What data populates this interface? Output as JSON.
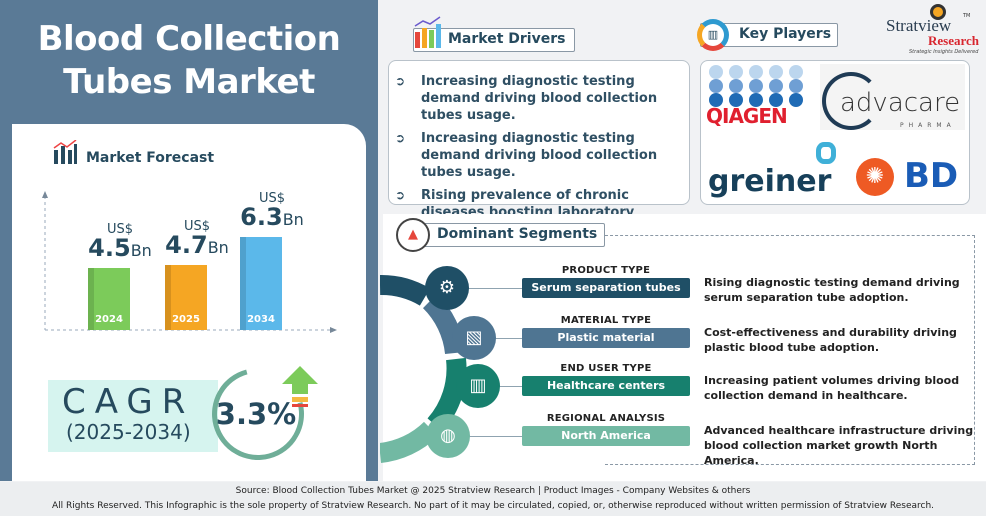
{
  "title": "Blood Collection Tubes Market",
  "forecast": {
    "header": "Market Forecast",
    "currency": "US$",
    "unit": "Bn",
    "bars": [
      {
        "year": "2024",
        "value": "4.5",
        "color": "#7ccb5a"
      },
      {
        "year": "2025",
        "value": "4.7",
        "color": "#f5a623"
      },
      {
        "year": "2034",
        "value": "6.3",
        "color": "#5bb8ea"
      }
    ]
  },
  "chart_data": {
    "type": "bar",
    "categories": [
      "2024",
      "2025",
      "2034"
    ],
    "values": [
      4.5,
      4.7,
      6.3
    ],
    "title": "Market Forecast",
    "ylabel": "US$ Bn"
  },
  "cagr": {
    "label": "CAGR",
    "period": "(2025-2034)",
    "value": "3.3%"
  },
  "drivers": {
    "header": "Market Drivers",
    "items": [
      "Increasing diagnostic testing demand driving blood collection tubes usage.",
      "Increasing diagnostic testing demand driving blood collection tubes usage.",
      "Rising prevalence of chronic diseases boosting laboratory testing volumes."
    ]
  },
  "key_players": {
    "header": "Key Players",
    "logos": [
      "QIAGEN",
      "advacare",
      "PHARMA",
      "greiner",
      "BD"
    ]
  },
  "brand": {
    "name1": "Stratview",
    "name2": "Research",
    "tagline": "Strategic Insights Delivered",
    "tm": "TM"
  },
  "segments": {
    "header": "Dominant Segments",
    "items": [
      {
        "type": "PRODUCT TYPE",
        "value": "Serum separation tubes",
        "desc": "Rising diagnostic testing demand driving serum separation tube adoption.",
        "color": "#1f4f66"
      },
      {
        "type": "MATERIAL TYPE",
        "value": "Plastic material",
        "desc": "Cost-effectiveness and durability driving plastic blood tube adoption.",
        "color": "#4f7592"
      },
      {
        "type": "END USER TYPE",
        "value": "Healthcare centers",
        "desc": "Increasing patient volumes driving blood collection demand in healthcare.",
        "color": "#17806e"
      },
      {
        "type": "REGIONAL ANALYSIS",
        "value": "North America",
        "desc": "Advanced healthcare infrastructure driving blood collection market growth North America.",
        "color": "#72b9a3"
      }
    ]
  },
  "footer": {
    "source": "Source:  Blood Collection Tubes Market  @ 2025 Stratview Research | Product Images  - Company Websites & others",
    "rights": "All Rights Reserved. This Infographic is the sole property of Stratview Research. No part of it may be circulated, copied, or, otherwise reproduced without written permission of Stratview Research."
  }
}
